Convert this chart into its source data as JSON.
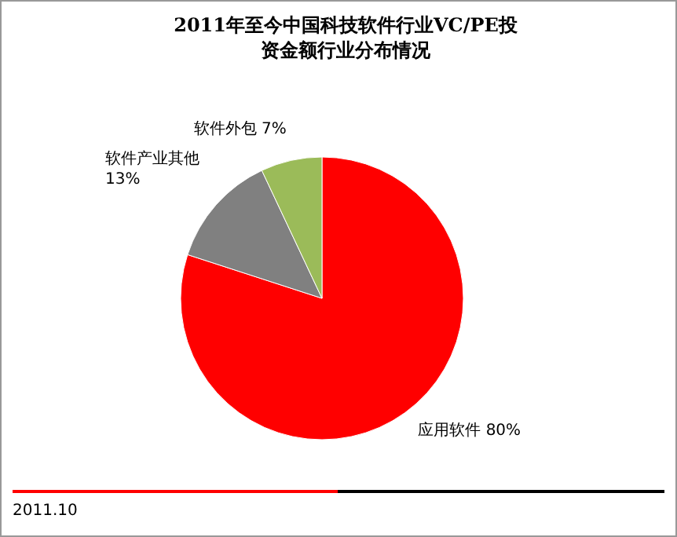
{
  "chart_data": {
    "type": "pie",
    "title": "2011年至今中国科技软件行业VC/PE投资金额行业分布情况",
    "categories": [
      "应用软件",
      "软件产业其他",
      "软件外包"
    ],
    "values": [
      80,
      13,
      7
    ],
    "value_labels": [
      "80%",
      "13%",
      "7%"
    ],
    "colors": [
      "#ff0000",
      "#808080",
      "#9bbb59"
    ],
    "annotations": [
      "2011.10"
    ]
  }
}
